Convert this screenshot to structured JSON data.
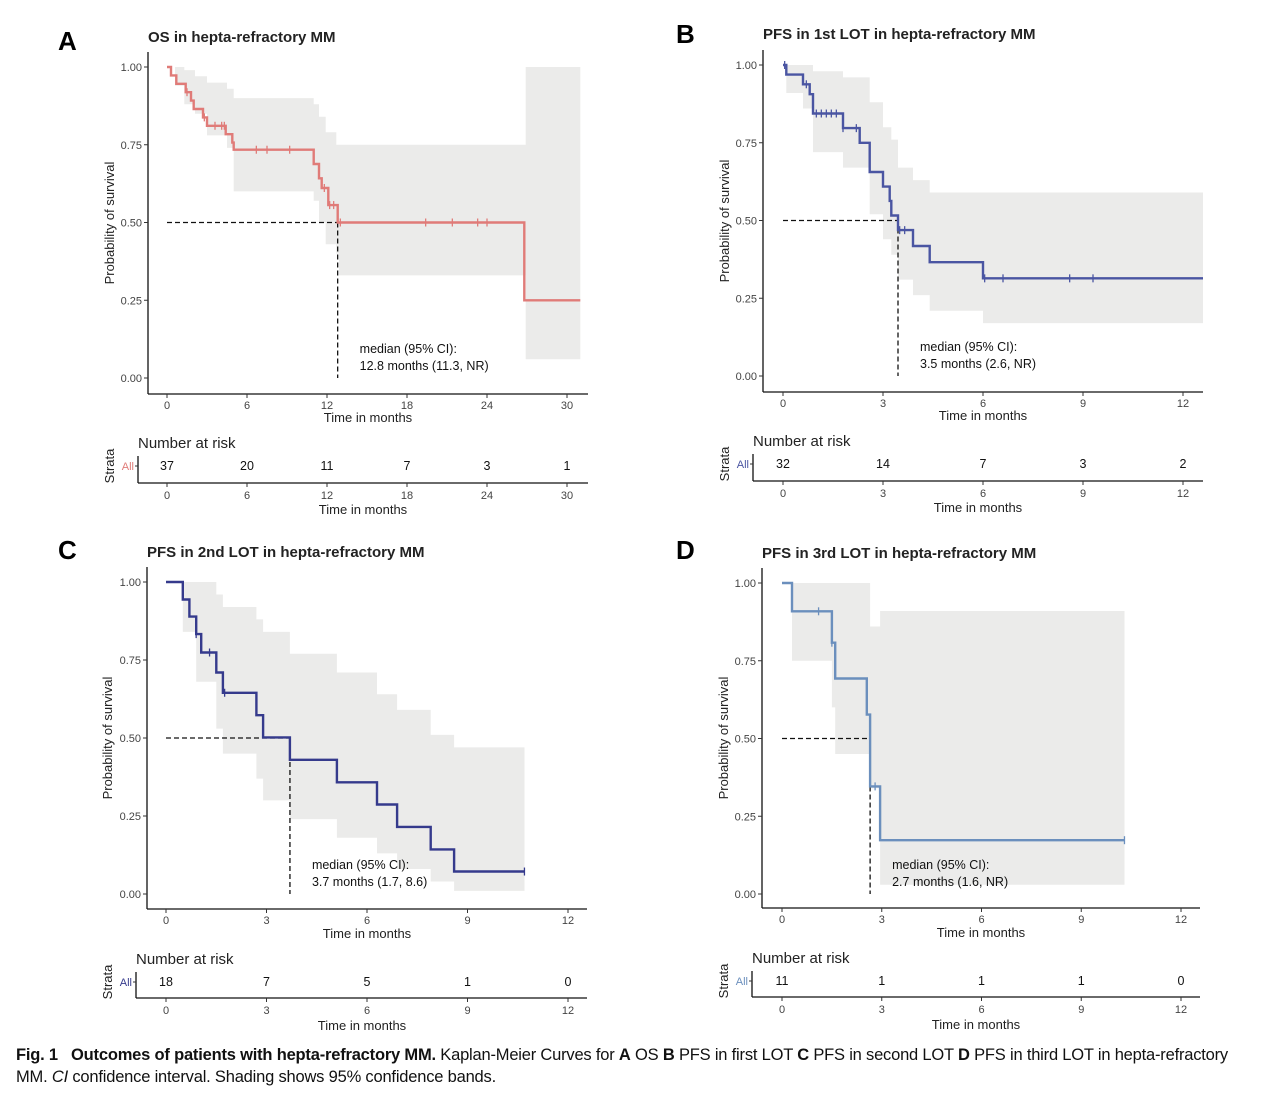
{
  "figure": {
    "caption": {
      "fig_label": "Fig. 1",
      "bold_title": "Outcomes of patients with hepta-refractory MM.",
      "text_1": "Kaplan-Meier Curves for",
      "a": "A",
      "a_text": "OS",
      "b": "B",
      "b_text": "PFS in first LOT",
      "c": "C",
      "c_text": "PFS in second LOT",
      "d": "D",
      "d_text": "PFS in third LOT in hepta-refractory MM.",
      "ci_abbr": "CI",
      "ci_text": "confidence interval. Shading shows 95% confidence bands."
    }
  },
  "chart_data": [
    {
      "panel": "A",
      "type": "line",
      "title": "OS in hepta-refractory MM",
      "xlabel": "Time in months",
      "ylabel": "Probability of survival",
      "xlim": [
        0,
        31
      ],
      "ylim": [
        0,
        1
      ],
      "xticks": [
        0,
        6,
        12,
        18,
        24,
        30
      ],
      "yticks": [
        "0.00",
        "0.25",
        "0.50",
        "0.75",
        "1.00"
      ],
      "color": "#e07b78",
      "grid": false,
      "steps": [
        [
          0,
          1.0
        ],
        [
          0.3,
          0.973
        ],
        [
          0.7,
          0.946
        ],
        [
          1.4,
          0.919
        ],
        [
          1.8,
          0.892
        ],
        [
          2.0,
          0.865
        ],
        [
          2.7,
          0.838
        ],
        [
          3.0,
          0.811
        ],
        [
          4.4,
          0.784
        ],
        [
          4.9,
          0.757
        ],
        [
          5.0,
          0.734
        ],
        [
          11.0,
          0.734
        ],
        [
          11.0,
          0.688
        ],
        [
          11.4,
          0.642
        ],
        [
          11.6,
          0.611
        ],
        [
          12.1,
          0.556
        ],
        [
          12.8,
          0.556
        ],
        [
          12.8,
          0.5
        ],
        [
          26.8,
          0.5
        ],
        [
          26.8,
          0.25
        ],
        [
          31,
          0.25
        ]
      ],
      "censors": [
        [
          1.5,
          0.919
        ],
        [
          2.8,
          0.838
        ],
        [
          3.6,
          0.811
        ],
        [
          4.1,
          0.811
        ],
        [
          4.3,
          0.811
        ],
        [
          6.7,
          0.734
        ],
        [
          7.5,
          0.734
        ],
        [
          9.2,
          0.734
        ],
        [
          11.8,
          0.611
        ],
        [
          12.2,
          0.556
        ],
        [
          12.5,
          0.556
        ],
        [
          13.0,
          0.5
        ],
        [
          19.4,
          0.5
        ],
        [
          21.4,
          0.5
        ],
        [
          23.3,
          0.5
        ],
        [
          24.0,
          0.5
        ]
      ],
      "ci_band": [
        [
          0,
          1.0,
          1.0
        ],
        [
          0.6,
          0.94,
          1.0
        ],
        [
          1.3,
          0.88,
          0.99
        ],
        [
          2.1,
          0.85,
          0.97
        ],
        [
          3.0,
          0.78,
          0.95
        ],
        [
          4.5,
          0.74,
          0.93
        ],
        [
          5.0,
          0.6,
          0.9
        ],
        [
          11.0,
          0.57,
          0.88
        ],
        [
          11.4,
          0.5,
          0.84
        ],
        [
          11.9,
          0.43,
          0.79
        ],
        [
          12.7,
          0.4,
          0.75
        ],
        [
          12.9,
          0.33,
          0.75
        ],
        [
          26.7,
          0.33,
          0.75
        ],
        [
          26.9,
          0.06,
          1.0
        ],
        [
          31,
          0.06,
          1.0
        ]
      ],
      "median": {
        "time": 12.8,
        "label_line1": "median (95% CI):",
        "label_line2": "12.8 months (11.3, NR)"
      },
      "risk_table": {
        "title": "Number at risk",
        "strata_axis": "Strata",
        "strata": "All",
        "times": [
          0,
          6,
          12,
          18,
          24,
          30
        ],
        "counts": [
          37,
          20,
          11,
          7,
          3,
          1
        ],
        "xlabel": "Time in months"
      }
    },
    {
      "panel": "B",
      "type": "line",
      "title": "PFS in 1st LOT in hepta-refractory MM",
      "xlabel": "Time in months",
      "ylabel": "Probability of survival",
      "xlim": [
        0,
        12.6
      ],
      "ylim": [
        0,
        1
      ],
      "xticks": [
        0,
        3,
        6,
        9,
        12
      ],
      "yticks": [
        "0.00",
        "0.25",
        "0.50",
        "0.75",
        "1.00"
      ],
      "color": "#4a55a2",
      "grid": false,
      "steps": [
        [
          0,
          1.0
        ],
        [
          0.1,
          0.969
        ],
        [
          0.6,
          0.938
        ],
        [
          0.8,
          0.906
        ],
        [
          0.9,
          0.844
        ],
        [
          1.8,
          0.844
        ],
        [
          1.8,
          0.797
        ],
        [
          2.3,
          0.797
        ],
        [
          2.3,
          0.75
        ],
        [
          2.6,
          0.75
        ],
        [
          2.6,
          0.656
        ],
        [
          3.0,
          0.656
        ],
        [
          3.0,
          0.609
        ],
        [
          3.2,
          0.609
        ],
        [
          3.2,
          0.563
        ],
        [
          3.25,
          0.516
        ],
        [
          3.45,
          0.516
        ],
        [
          3.45,
          0.469
        ],
        [
          3.9,
          0.469
        ],
        [
          3.9,
          0.418
        ],
        [
          4.4,
          0.418
        ],
        [
          4.4,
          0.366
        ],
        [
          6.0,
          0.366
        ],
        [
          6.0,
          0.314
        ],
        [
          12.6,
          0.314
        ]
      ],
      "censors": [
        [
          0.05,
          1.0
        ],
        [
          0.7,
          0.938
        ],
        [
          1.0,
          0.844
        ],
        [
          1.15,
          0.844
        ],
        [
          1.3,
          0.844
        ],
        [
          1.45,
          0.844
        ],
        [
          1.6,
          0.844
        ],
        [
          1.8,
          0.797
        ],
        [
          2.2,
          0.797
        ],
        [
          3.5,
          0.469
        ],
        [
          3.65,
          0.469
        ],
        [
          6.05,
          0.314
        ],
        [
          6.6,
          0.314
        ],
        [
          8.6,
          0.314
        ],
        [
          9.3,
          0.314
        ]
      ],
      "ci_band": [
        [
          0,
          1.0,
          1.0
        ],
        [
          0.1,
          0.91,
          1.0
        ],
        [
          0.6,
          0.86,
          1.0
        ],
        [
          0.9,
          0.81,
          1.0
        ],
        [
          0.9,
          0.72,
          0.98
        ],
        [
          1.8,
          0.72,
          0.96
        ],
        [
          1.8,
          0.67,
          0.96
        ],
        [
          2.6,
          0.6,
          0.93
        ],
        [
          2.6,
          0.52,
          0.88
        ],
        [
          3.0,
          0.47,
          0.84
        ],
        [
          3.0,
          0.44,
          0.8
        ],
        [
          3.25,
          0.39,
          0.76
        ],
        [
          3.45,
          0.34,
          0.72
        ],
        [
          3.45,
          0.31,
          0.67
        ],
        [
          3.9,
          0.31,
          0.67
        ],
        [
          3.9,
          0.26,
          0.63
        ],
        [
          4.4,
          0.21,
          0.63
        ],
        [
          4.4,
          0.21,
          0.59
        ],
        [
          6.0,
          0.17,
          0.59
        ],
        [
          12.6,
          0.17,
          0.59
        ]
      ],
      "median": {
        "time": 3.45,
        "label_line1": "median (95% CI):",
        "label_line2": "3.5 months (2.6, NR)"
      },
      "risk_table": {
        "title": "Number at risk",
        "strata_axis": "Strata",
        "strata": "All",
        "times": [
          0,
          3,
          6,
          9,
          12
        ],
        "counts": [
          32,
          14,
          7,
          3,
          2
        ],
        "xlabel": "Time in months"
      }
    },
    {
      "panel": "C",
      "type": "line",
      "title": "PFS in 2nd LOT in hepta-refractory MM",
      "xlabel": "Time in months",
      "ylabel": "Probability of survival",
      "xlim": [
        0,
        12.6
      ],
      "ylim": [
        0,
        1
      ],
      "xticks": [
        0,
        3,
        6,
        9,
        12
      ],
      "yticks": [
        "0.00",
        "0.25",
        "0.50",
        "0.75",
        "1.00"
      ],
      "color": "#353a8c",
      "grid": false,
      "steps": [
        [
          0,
          1.0
        ],
        [
          0.5,
          1.0
        ],
        [
          0.5,
          0.944
        ],
        [
          0.7,
          0.944
        ],
        [
          0.7,
          0.889
        ],
        [
          0.9,
          0.889
        ],
        [
          0.9,
          0.833
        ],
        [
          1.05,
          0.833
        ],
        [
          1.05,
          0.774
        ],
        [
          1.5,
          0.774
        ],
        [
          1.5,
          0.71
        ],
        [
          1.7,
          0.71
        ],
        [
          1.7,
          0.645
        ],
        [
          2.7,
          0.645
        ],
        [
          2.7,
          0.573
        ],
        [
          2.9,
          0.573
        ],
        [
          2.9,
          0.502
        ],
        [
          3.7,
          0.502
        ],
        [
          3.7,
          0.43
        ],
        [
          5.1,
          0.43
        ],
        [
          5.1,
          0.358
        ],
        [
          6.3,
          0.358
        ],
        [
          6.3,
          0.287
        ],
        [
          6.9,
          0.287
        ],
        [
          6.9,
          0.215
        ],
        [
          7.9,
          0.215
        ],
        [
          7.9,
          0.143
        ],
        [
          8.6,
          0.143
        ],
        [
          8.6,
          0.072
        ],
        [
          10.7,
          0.072
        ]
      ],
      "censors": [
        [
          0.9,
          0.833
        ],
        [
          1.3,
          0.774
        ],
        [
          1.75,
          0.645
        ],
        [
          10.7,
          0.072
        ]
      ],
      "ci_band": [
        [
          0,
          1.0,
          1.0
        ],
        [
          0.5,
          0.84,
          1.0
        ],
        [
          0.9,
          0.75,
          1.0
        ],
        [
          0.9,
          0.68,
          1.0
        ],
        [
          1.5,
          0.6,
          1.0
        ],
        [
          1.5,
          0.53,
          0.96
        ],
        [
          1.7,
          0.45,
          0.92
        ],
        [
          2.7,
          0.45,
          0.92
        ],
        [
          2.7,
          0.37,
          0.88
        ],
        [
          2.9,
          0.3,
          0.84
        ],
        [
          3.7,
          0.3,
          0.84
        ],
        [
          3.7,
          0.24,
          0.77
        ],
        [
          5.1,
          0.24,
          0.77
        ],
        [
          5.1,
          0.18,
          0.71
        ],
        [
          6.3,
          0.18,
          0.71
        ],
        [
          6.3,
          0.13,
          0.64
        ],
        [
          6.9,
          0.08,
          0.59
        ],
        [
          7.9,
          0.08,
          0.59
        ],
        [
          7.9,
          0.04,
          0.51
        ],
        [
          8.6,
          0.04,
          0.51
        ],
        [
          8.6,
          0.01,
          0.47
        ],
        [
          10.7,
          0.01,
          0.47
        ]
      ],
      "median": {
        "time": 3.7,
        "label_line1": "median (95% CI):",
        "label_line2": "3.7 months (1.7, 8.6)"
      },
      "risk_table": {
        "title": "Number at risk",
        "strata_axis": "Strata",
        "strata": "All",
        "times": [
          0,
          3,
          6,
          9,
          12
        ],
        "counts": [
          18,
          7,
          5,
          1,
          0
        ],
        "xlabel": "Time in months"
      }
    },
    {
      "panel": "D",
      "type": "line",
      "title": "PFS in 3rd LOT in hepta-refractory MM",
      "xlabel": "Time in months",
      "ylabel": "Probability of survival",
      "xlim": [
        0,
        12.6
      ],
      "ylim": [
        0,
        1
      ],
      "xticks": [
        0,
        3,
        6,
        9,
        12
      ],
      "yticks": [
        "0.00",
        "0.25",
        "0.50",
        "0.75",
        "1.00"
      ],
      "color": "#6b8fbd",
      "grid": false,
      "steps": [
        [
          0,
          1.0
        ],
        [
          0.3,
          1.0
        ],
        [
          0.3,
          0.909
        ],
        [
          1.5,
          0.909
        ],
        [
          1.5,
          0.808
        ],
        [
          1.6,
          0.808
        ],
        [
          1.6,
          0.693
        ],
        [
          2.55,
          0.693
        ],
        [
          2.55,
          0.577
        ],
        [
          2.65,
          0.577
        ],
        [
          2.65,
          0.346
        ],
        [
          2.95,
          0.346
        ],
        [
          2.95,
          0.173
        ],
        [
          10.3,
          0.173
        ]
      ],
      "censors": [
        [
          1.1,
          0.909
        ],
        [
          1.5,
          0.808
        ],
        [
          2.8,
          0.346
        ],
        [
          10.3,
          0.173
        ]
      ],
      "ci_band": [
        [
          0,
          1.0,
          1.0
        ],
        [
          0.3,
          0.75,
          1.0
        ],
        [
          1.5,
          0.75,
          1.0
        ],
        [
          1.5,
          0.6,
          1.0
        ],
        [
          1.6,
          0.45,
          1.0
        ],
        [
          2.65,
          0.45,
          1.0
        ],
        [
          2.65,
          0.34,
          0.86
        ],
        [
          2.95,
          0.14,
          0.86
        ],
        [
          2.95,
          0.03,
          0.91
        ],
        [
          10.3,
          0.03,
          0.91
        ]
      ],
      "median": {
        "time": 2.65,
        "label_line1": "median (95% CI):",
        "label_line2": "2.7 months (1.6, NR)"
      },
      "risk_table": {
        "title": "Number at risk",
        "strata_axis": "Strata",
        "strata": "All",
        "times": [
          0,
          3,
          6,
          9,
          12
        ],
        "counts": [
          11,
          1,
          1,
          1,
          0
        ],
        "xlabel": "Time in months"
      }
    }
  ]
}
